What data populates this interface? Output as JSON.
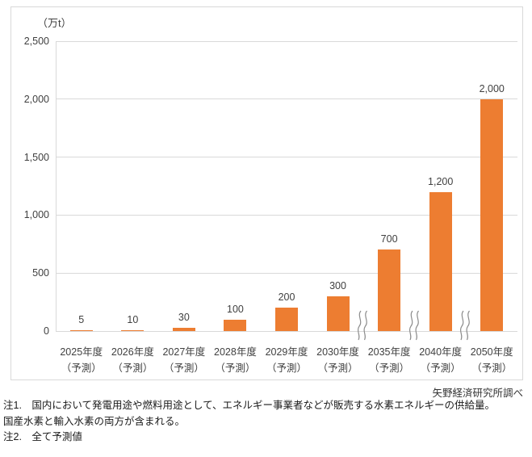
{
  "chart_data": {
    "type": "bar",
    "unit_label": "（万t）",
    "categories": [
      "2025年度",
      "2026年度",
      "2027年度",
      "2028年度",
      "2029年度",
      "2030年度",
      "2035年度",
      "2040年度",
      "2050年度"
    ],
    "category_sublabels": [
      "（予測）",
      "（予測）",
      "（予測）",
      "（予測）",
      "（予測）",
      "（予測）",
      "（予測）",
      "（予測）",
      "（予測）"
    ],
    "values": [
      5,
      10,
      30,
      100,
      200,
      300,
      700,
      1200,
      2000
    ],
    "value_labels": [
      "5",
      "10",
      "30",
      "100",
      "200",
      "300",
      "700",
      "1,200",
      "2,000"
    ],
    "y_ticks": [
      {
        "label": "0",
        "value": 0
      },
      {
        "label": "500",
        "value": 500
      },
      {
        "label": "1,000",
        "value": 1000
      },
      {
        "label": "1,500",
        "value": 1500
      },
      {
        "label": "2,000",
        "value": 2000
      },
      {
        "label": "2,500",
        "value": 2500
      }
    ],
    "ylim": [
      0,
      2500
    ],
    "grid": "horizontal",
    "legend_position": "none",
    "bar_color": "#ed7d31",
    "gridline_color": "#d9d9d9",
    "axis_break_after_indices": [
      5,
      6,
      7
    ]
  },
  "credit": "矢野経済研究所調べ",
  "notes": {
    "line1": "注1.　国内において発電用途や燃料用途として、エネルギー事業者などが販売する水素エネルギーの供給量。",
    "line2": "国産水素と輸入水素の両方が含まれる。",
    "line3": "注2.　全て予測値"
  }
}
